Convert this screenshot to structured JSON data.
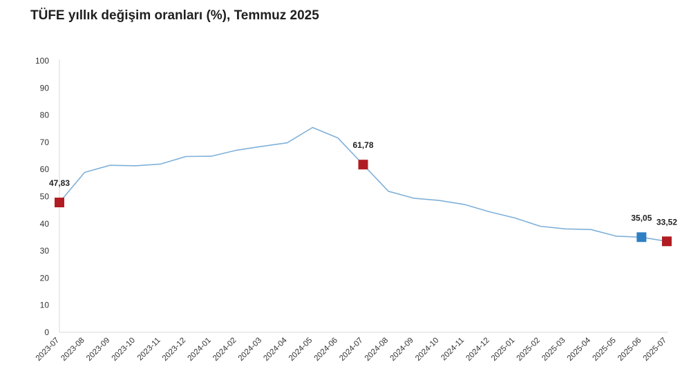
{
  "title": "TÜFE yıllık değişim oranları (%), Temmuz 2025",
  "chart_data": {
    "type": "line",
    "title": "TÜFE yıllık değişim oranları (%), Temmuz 2025",
    "xlabel": "",
    "ylabel": "",
    "ylim": [
      0,
      100
    ],
    "yticks": [
      0,
      10,
      20,
      30,
      40,
      50,
      60,
      70,
      80,
      90,
      100
    ],
    "grid": false,
    "legend": "none",
    "categories": [
      "2023-07",
      "2023-08",
      "2023-09",
      "2023-10",
      "2023-11",
      "2023-12",
      "2024-01",
      "2024-02",
      "2024-03",
      "2024-04",
      "2024-05",
      "2024-06",
      "2024-07",
      "2024-08",
      "2024-09",
      "2024-10",
      "2024-11",
      "2024-12",
      "2025-01",
      "2025-02",
      "2025-03",
      "2025-04",
      "2025-05",
      "2025-06",
      "2025-07"
    ],
    "series": [
      {
        "values": [
          47.83,
          58.94,
          61.53,
          61.36,
          61.98,
          64.77,
          64.86,
          67.07,
          68.5,
          69.8,
          75.45,
          71.6,
          61.78,
          51.97,
          49.38,
          48.58,
          47.09,
          44.38,
          42.12,
          39.05,
          38.1,
          37.86,
          35.41,
          35.05,
          33.52
        ],
        "color": "#7fb0d8"
      }
    ],
    "markers": [
      {
        "category": "2023-07",
        "value": 47.83,
        "label": "47,83",
        "color": "#b01c22"
      },
      {
        "category": "2024-07",
        "value": 61.78,
        "label": "61,78",
        "color": "#b01c22"
      },
      {
        "category": "2025-06",
        "value": 35.05,
        "label": "35,05",
        "color": "#2f7fc4"
      },
      {
        "category": "2025-07",
        "value": 33.52,
        "label": "33,52",
        "color": "#b01c22"
      }
    ],
    "axis_color": "#d9d9d9"
  }
}
